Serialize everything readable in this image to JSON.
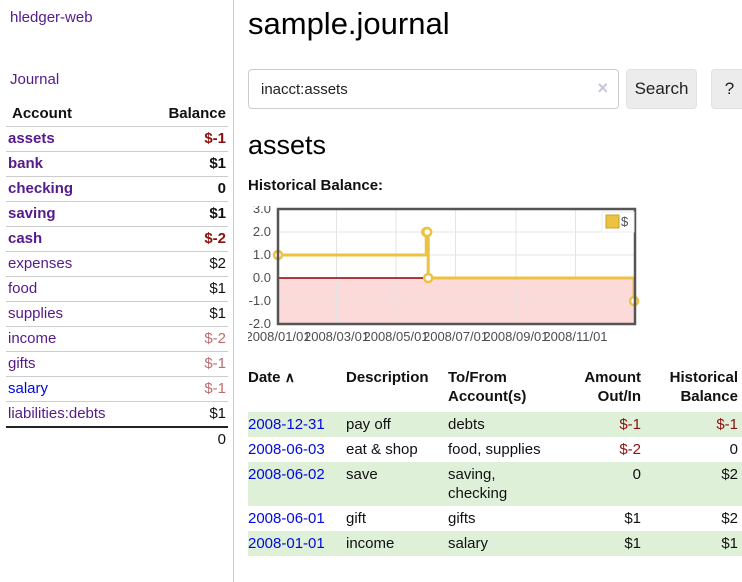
{
  "app": {
    "brand": "hledger-web",
    "nav": {
      "journal": "Journal"
    }
  },
  "sidebar": {
    "headers": {
      "account": "Account",
      "balance": "Balance"
    },
    "accounts": [
      {
        "name": "assets",
        "balance": "$-1",
        "level": 1,
        "bold": true
      },
      {
        "name": "bank",
        "balance": "$1",
        "level": 2,
        "bold": true
      },
      {
        "name": "checking",
        "balance": "0",
        "level": 3,
        "bold": true
      },
      {
        "name": "saving",
        "balance": "$1",
        "level": 3,
        "bold": true
      },
      {
        "name": "cash",
        "balance": "$-2",
        "level": 2,
        "bold": true
      },
      {
        "name": "expenses",
        "balance": "$2",
        "level": 1,
        "bold": false
      },
      {
        "name": "food",
        "balance": "$1",
        "level": 2,
        "bold": false
      },
      {
        "name": "supplies",
        "balance": "$1",
        "level": 2,
        "bold": false
      },
      {
        "name": "income",
        "balance": "$-2",
        "level": 1,
        "bold": false
      },
      {
        "name": "gifts",
        "balance": "$-1",
        "level": 2,
        "bold": false
      },
      {
        "name": "salary",
        "balance": "$-1",
        "level": 2,
        "bold": false,
        "blue_link": true
      },
      {
        "name": "liabilities:debts",
        "balance": "$1",
        "level": 1,
        "bold": false
      }
    ],
    "total": "0"
  },
  "main": {
    "title": "sample.journal",
    "search": {
      "value": "inacct:assets",
      "clear_icon": "×",
      "search_button": "Search",
      "help_button": "?"
    },
    "account_heading": "assets",
    "chart_label": "Historical Balance:"
  },
  "chart_data": {
    "type": "line",
    "step": true,
    "title": "Historical Balance",
    "series": [
      {
        "name": "$",
        "color": "#edc240",
        "points": [
          [
            "2008-01-01",
            1
          ],
          [
            "2008-06-01",
            2
          ],
          [
            "2008-06-02",
            2
          ],
          [
            "2008-06-03",
            0
          ],
          [
            "2008-12-31",
            -1
          ]
        ]
      }
    ],
    "xlim": [
      "2008-01-01",
      "2009-01-01"
    ],
    "ylim": [
      -2,
      3
    ],
    "yticks": [
      "3.0",
      "2.0",
      "1.0",
      "0.0",
      "-1.0",
      "-2.0"
    ],
    "xticks": [
      "2008/01/01",
      "2008/03/01",
      "2008/05/01",
      "2008/07/01",
      "2008/09/01",
      "2008/11/01"
    ],
    "grid": true,
    "negative_region": {
      "from": -2,
      "to": 0,
      "color": "#fcdada",
      "line_color": "#8b0000"
    },
    "legend": {
      "label": "$",
      "swatch_color": "#edc240",
      "swatch_border": "#c9a12f",
      "position": "top-right"
    }
  },
  "register": {
    "headers": {
      "date": "Date",
      "description": "Description",
      "account": "To/From Account(s)",
      "amount": "Amount Out/In",
      "balance": "Historical Balance"
    },
    "sort_icon": "∧",
    "rows": [
      {
        "date": "2008-12-31",
        "description": "pay off",
        "accounts": "debts",
        "amount": "$-1",
        "balance": "$-1"
      },
      {
        "date": "2008-06-03",
        "description": "eat & shop",
        "accounts": "food, supplies",
        "amount": "$-2",
        "balance": "0"
      },
      {
        "date": "2008-06-02",
        "description": "save",
        "accounts": "saving, checking",
        "amount": "0",
        "balance": "$2"
      },
      {
        "date": "2008-06-01",
        "description": "gift",
        "accounts": "gifts",
        "amount": "$1",
        "balance": "$2"
      },
      {
        "date": "2008-01-01",
        "description": "income",
        "accounts": "salary",
        "amount": "$1",
        "balance": "$1"
      }
    ]
  },
  "colors": {
    "link_purple": "#551a8b",
    "link_blue": "#0009dd",
    "negative_strong": "#8f0e0e",
    "negative_muted": "#b96f6f",
    "row_green": "#dff0d8",
    "series_yellow": "#edc240",
    "negative_zone_pink": "#fcdada"
  }
}
